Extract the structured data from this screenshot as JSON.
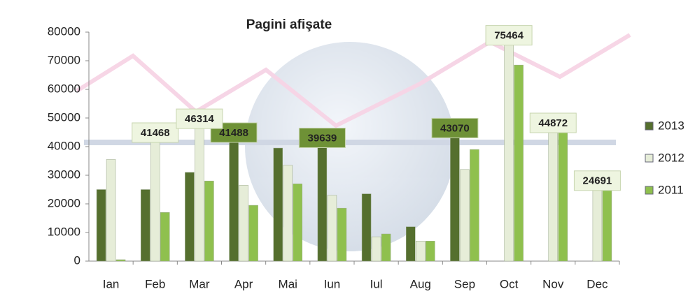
{
  "chart_data": {
    "type": "bar",
    "title": "Pagini afişate",
    "categories": [
      "Ian",
      "Feb",
      "Mar",
      "Apr",
      "Mai",
      "Iun",
      "Iul",
      "Aug",
      "Sep",
      "Oct",
      "Nov",
      "Dec"
    ],
    "series": [
      {
        "name": "2013",
        "color": "#556f2e",
        "values": [
          25000,
          25000,
          31000,
          41488,
          39500,
          39639,
          23500,
          12000,
          43070,
          null,
          null,
          null
        ],
        "data_labels": [
          3,
          5,
          8
        ]
      },
      {
        "name": "2012",
        "color": "#e6edd8",
        "values": [
          35500,
          41468,
          46314,
          26500,
          33500,
          23000,
          8500,
          7000,
          32000,
          75464,
          44872,
          24691
        ],
        "data_labels": [
          1,
          2,
          9,
          10,
          11
        ]
      },
      {
        "name": "2011",
        "color": "#8fc04e",
        "values": [
          500,
          17000,
          28000,
          19500,
          27000,
          18500,
          9500,
          7000,
          39000,
          68500,
          47000,
          27000
        ],
        "data_labels": []
      }
    ],
    "ylim": [
      0,
      80000
    ],
    "yticks": [
      0,
      10000,
      20000,
      30000,
      40000,
      50000,
      60000,
      70000,
      80000
    ],
    "grid": false,
    "legend": "right"
  }
}
